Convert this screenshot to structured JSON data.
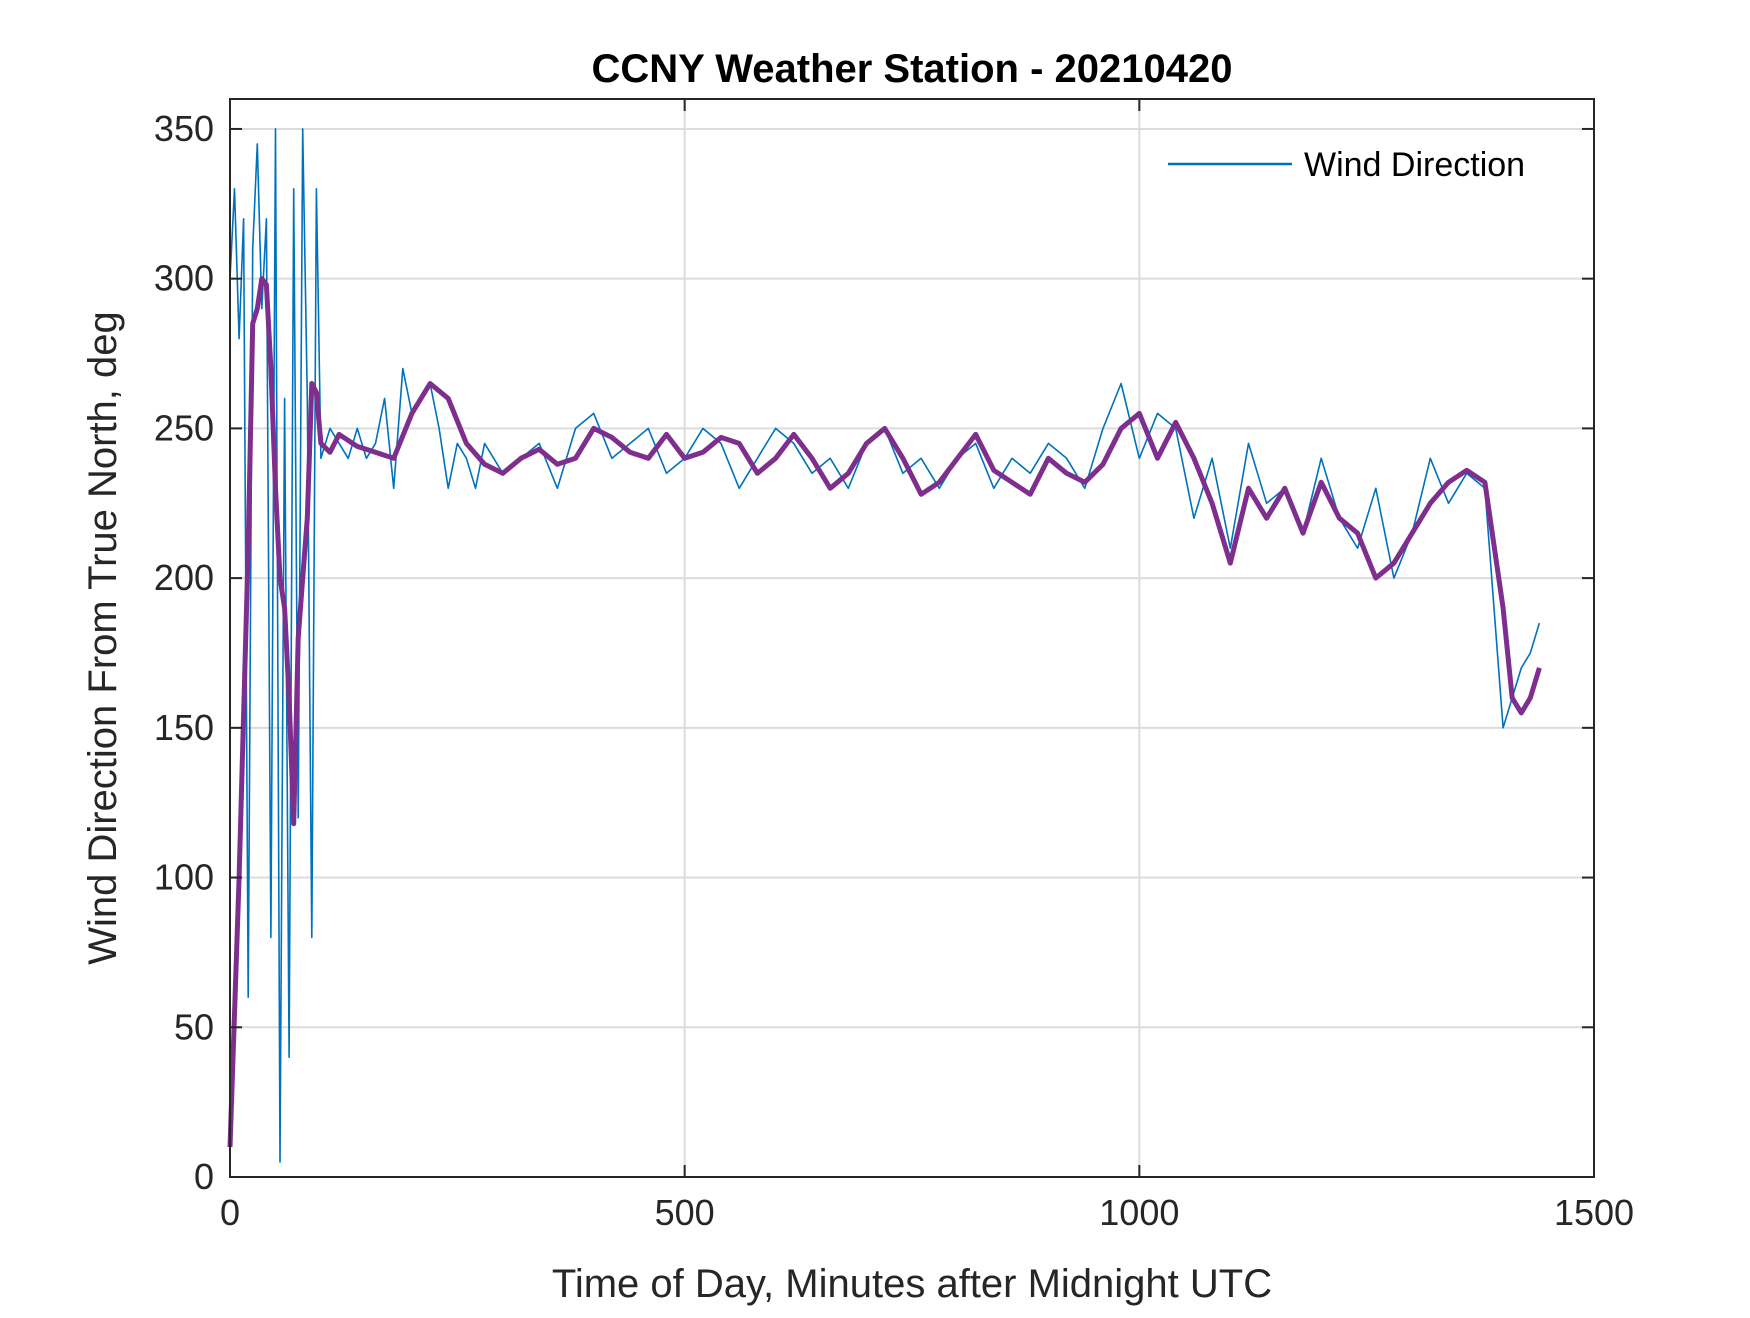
{
  "chart_data": {
    "type": "line",
    "title": "CCNY Weather Station - 20210420",
    "xlabel": "Time of Day, Minutes after Midnight UTC",
    "ylabel": "Wind Direction From True North, deg",
    "xlim": [
      0,
      1500
    ],
    "ylim": [
      0,
      360
    ],
    "xticks": [
      0,
      500,
      1000,
      1500
    ],
    "yticks": [
      0,
      50,
      100,
      150,
      200,
      250,
      300,
      350
    ],
    "grid": true,
    "legend": {
      "position": "top-right",
      "entries": [
        "Wind Direction"
      ]
    },
    "series": [
      {
        "name": "Wind Direction",
        "color": "#0072BD",
        "style": "thin raw 1-minute samples",
        "x": [
          0,
          5,
          10,
          15,
          20,
          25,
          30,
          35,
          40,
          45,
          50,
          55,
          60,
          65,
          70,
          75,
          80,
          85,
          90,
          95,
          100,
          110,
          120,
          130,
          140,
          150,
          160,
          170,
          180,
          190,
          200,
          210,
          220,
          230,
          240,
          250,
          260,
          270,
          280,
          290,
          300,
          320,
          340,
          360,
          380,
          400,
          420,
          440,
          460,
          480,
          500,
          520,
          540,
          560,
          580,
          600,
          620,
          640,
          660,
          680,
          700,
          720,
          740,
          760,
          780,
          800,
          820,
          840,
          860,
          880,
          900,
          920,
          940,
          960,
          980,
          1000,
          1020,
          1040,
          1060,
          1080,
          1100,
          1120,
          1140,
          1160,
          1180,
          1200,
          1220,
          1240,
          1260,
          1280,
          1300,
          1320,
          1340,
          1360,
          1380,
          1400,
          1410,
          1420,
          1430,
          1440
        ],
        "y": [
          300,
          330,
          280,
          320,
          60,
          310,
          345,
          290,
          320,
          80,
          350,
          5,
          260,
          40,
          330,
          120,
          350,
          260,
          80,
          330,
          240,
          250,
          245,
          240,
          250,
          240,
          245,
          260,
          230,
          270,
          255,
          260,
          265,
          250,
          230,
          245,
          240,
          230,
          245,
          240,
          235,
          240,
          245,
          230,
          250,
          255,
          240,
          245,
          250,
          235,
          240,
          250,
          245,
          230,
          240,
          250,
          245,
          235,
          240,
          230,
          245,
          250,
          235,
          240,
          230,
          240,
          245,
          230,
          240,
          235,
          245,
          240,
          230,
          250,
          265,
          240,
          255,
          250,
          220,
          240,
          210,
          245,
          225,
          230,
          215,
          240,
          220,
          210,
          230,
          200,
          215,
          240,
          225,
          235,
          230,
          150,
          160,
          170,
          175,
          185
        ]
      },
      {
        "name": "",
        "color": "#7E2F8E",
        "style": "thick smoothed moving average",
        "x": [
          0,
          10,
          20,
          25,
          30,
          35,
          40,
          45,
          50,
          55,
          60,
          65,
          70,
          75,
          80,
          85,
          90,
          95,
          100,
          110,
          120,
          140,
          160,
          180,
          200,
          220,
          240,
          260,
          280,
          300,
          320,
          340,
          360,
          380,
          400,
          420,
          440,
          460,
          480,
          500,
          520,
          540,
          560,
          580,
          600,
          620,
          640,
          660,
          680,
          700,
          720,
          740,
          760,
          780,
          800,
          820,
          840,
          860,
          880,
          900,
          920,
          940,
          960,
          980,
          1000,
          1020,
          1040,
          1060,
          1080,
          1100,
          1120,
          1140,
          1160,
          1180,
          1200,
          1220,
          1240,
          1260,
          1280,
          1300,
          1320,
          1340,
          1360,
          1380,
          1400,
          1410,
          1420,
          1430,
          1440
        ],
        "y": [
          10,
          100,
          210,
          285,
          290,
          300,
          298,
          270,
          230,
          200,
          190,
          160,
          118,
          180,
          200,
          220,
          265,
          262,
          245,
          242,
          248,
          244,
          242,
          240,
          255,
          265,
          260,
          245,
          238,
          235,
          240,
          243,
          238,
          240,
          250,
          247,
          242,
          240,
          248,
          240,
          242,
          247,
          245,
          235,
          240,
          248,
          240,
          230,
          235,
          245,
          250,
          240,
          228,
          232,
          240,
          248,
          236,
          232,
          228,
          240,
          235,
          232,
          238,
          250,
          255,
          240,
          252,
          240,
          225,
          205,
          230,
          220,
          230,
          215,
          232,
          220,
          215,
          200,
          205,
          215,
          225,
          232,
          236,
          232,
          190,
          160,
          155,
          160,
          170
        ]
      }
    ]
  }
}
